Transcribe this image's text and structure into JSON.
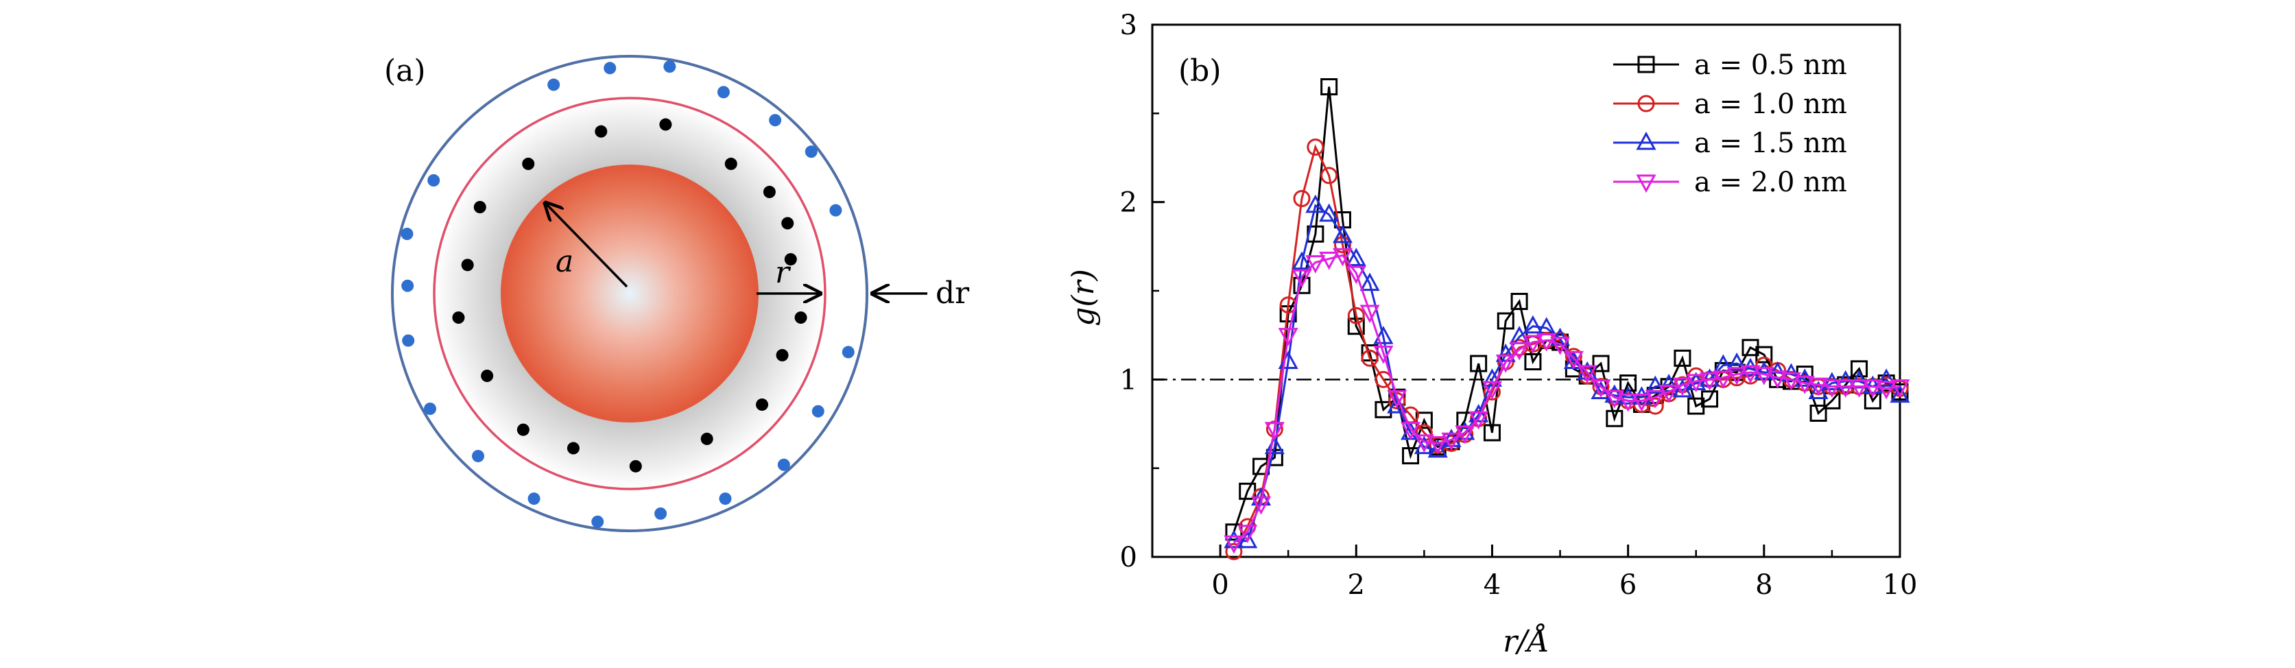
{
  "panel_a": {
    "label": "(a)",
    "radius_label": "a",
    "shell_label": "r",
    "thickness_label": "dr"
  },
  "chart_data": {
    "type": "line",
    "panel_label": "(b)",
    "title": "",
    "xlabel": "r/Å",
    "ylabel": "g(r)",
    "xlim": [
      -1,
      10
    ],
    "ylim": [
      0,
      3
    ],
    "xticks": [
      "0",
      "2",
      "4",
      "6",
      "8",
      "10"
    ],
    "yticks": [
      "0",
      "1",
      "2",
      "3"
    ],
    "reference_line": {
      "y": 1,
      "style": "dash-dot"
    },
    "legend_position": "top-right",
    "series": [
      {
        "name": "a = 0.5 nm",
        "color": "#000000",
        "marker": "square",
        "x": [
          0.2,
          0.4,
          0.6,
          0.8,
          1.0,
          1.2,
          1.4,
          1.6,
          1.8,
          2.0,
          2.2,
          2.4,
          2.6,
          2.8,
          3.0,
          3.2,
          3.4,
          3.6,
          3.8,
          4.0,
          4.2,
          4.4,
          4.6,
          4.8,
          5.0,
          5.2,
          5.4,
          5.6,
          5.8,
          6.0,
          6.2,
          6.4,
          6.6,
          6.8,
          7.0,
          7.2,
          7.4,
          7.6,
          7.8,
          8.0,
          8.2,
          8.4,
          8.6,
          8.8,
          9.0,
          9.2,
          9.4,
          9.6,
          9.8,
          10.0
        ],
        "y": [
          0.14,
          0.37,
          0.51,
          0.56,
          1.37,
          1.53,
          1.82,
          2.65,
          1.9,
          1.3,
          1.15,
          0.83,
          0.9,
          0.57,
          0.77,
          0.62,
          0.65,
          0.77,
          1.09,
          0.7,
          1.33,
          1.44,
          1.1,
          1.22,
          1.21,
          1.06,
          1.02,
          1.09,
          0.78,
          0.98,
          0.86,
          0.91,
          0.96,
          1.12,
          0.85,
          0.89,
          1.05,
          1.04,
          1.18,
          1.14,
          1.0,
          0.99,
          1.03,
          0.81,
          0.88,
          0.97,
          1.06,
          0.88,
          0.98,
          0.93
        ]
      },
      {
        "name": "a = 1.0 nm",
        "color": "#d42020",
        "marker": "circle",
        "x": [
          0.2,
          0.4,
          0.6,
          0.8,
          1.0,
          1.2,
          1.4,
          1.6,
          1.8,
          2.0,
          2.2,
          2.4,
          2.6,
          2.8,
          3.0,
          3.2,
          3.4,
          3.6,
          3.8,
          4.0,
          4.2,
          4.4,
          4.6,
          4.8,
          5.0,
          5.2,
          5.4,
          5.6,
          5.8,
          6.0,
          6.2,
          6.4,
          6.6,
          6.8,
          7.0,
          7.2,
          7.4,
          7.6,
          7.8,
          8.0,
          8.2,
          8.4,
          8.6,
          8.8,
          9.0,
          9.2,
          9.4,
          9.6,
          9.8,
          10.0
        ],
        "y": [
          0.03,
          0.17,
          0.34,
          0.72,
          1.42,
          2.02,
          2.31,
          2.15,
          1.76,
          1.36,
          1.12,
          1.0,
          0.88,
          0.8,
          0.7,
          0.63,
          0.64,
          0.69,
          0.78,
          0.93,
          1.1,
          1.18,
          1.2,
          1.22,
          1.22,
          1.13,
          1.02,
          0.96,
          0.9,
          0.88,
          0.86,
          0.85,
          0.92,
          0.97,
          1.02,
          1.0,
          1.0,
          1.01,
          1.02,
          1.08,
          1.05,
          1.0,
          0.98,
          0.96,
          0.96,
          0.96,
          0.96,
          0.96,
          0.97,
          0.95
        ]
      },
      {
        "name": "a = 1.5 nm",
        "color": "#1f2fd6",
        "marker": "triangle-up",
        "x": [
          0.2,
          0.4,
          0.6,
          0.8,
          1.0,
          1.2,
          1.4,
          1.6,
          1.8,
          2.0,
          2.2,
          2.4,
          2.6,
          2.8,
          3.0,
          3.2,
          3.4,
          3.6,
          3.8,
          4.0,
          4.2,
          4.4,
          4.6,
          4.8,
          5.0,
          5.2,
          5.4,
          5.6,
          5.8,
          6.0,
          6.2,
          6.4,
          6.6,
          6.8,
          7.0,
          7.2,
          7.4,
          7.6,
          7.8,
          8.0,
          8.2,
          8.4,
          8.6,
          8.8,
          9.0,
          9.2,
          9.4,
          9.6,
          9.8,
          10.0
        ],
        "y": [
          0.09,
          0.09,
          0.33,
          0.62,
          1.1,
          1.66,
          1.98,
          1.93,
          1.81,
          1.68,
          1.54,
          1.24,
          0.85,
          0.7,
          0.62,
          0.6,
          0.66,
          0.7,
          0.8,
          1.0,
          1.14,
          1.24,
          1.3,
          1.29,
          1.23,
          1.1,
          1.04,
          0.93,
          0.91,
          0.9,
          0.9,
          0.96,
          0.97,
          0.94,
          0.98,
          1.0,
          1.08,
          1.09,
          1.06,
          1.04,
          1.04,
          1.03,
          1.0,
          0.93,
          0.98,
          0.99,
          0.99,
          0.96,
          1.0,
          0.91
        ]
      },
      {
        "name": "a = 2.0 nm",
        "color": "#e020e0",
        "marker": "triangle-down",
        "x": [
          0.2,
          0.4,
          0.6,
          0.8,
          1.0,
          1.2,
          1.4,
          1.6,
          1.8,
          2.0,
          2.2,
          2.4,
          2.6,
          2.8,
          3.0,
          3.2,
          3.4,
          3.6,
          3.8,
          4.0,
          4.2,
          4.4,
          4.6,
          4.8,
          5.0,
          5.2,
          5.4,
          5.6,
          5.8,
          6.0,
          6.2,
          6.4,
          6.6,
          6.8,
          7.0,
          7.2,
          7.4,
          7.6,
          7.8,
          8.0,
          8.2,
          8.4,
          8.6,
          8.8,
          9.0,
          9.2,
          9.4,
          9.6,
          9.8,
          10.0
        ],
        "y": [
          0.08,
          0.14,
          0.3,
          0.72,
          1.25,
          1.58,
          1.66,
          1.68,
          1.7,
          1.6,
          1.38,
          1.15,
          0.9,
          0.72,
          0.65,
          0.64,
          0.66,
          0.7,
          0.78,
          0.95,
          1.1,
          1.17,
          1.21,
          1.22,
          1.2,
          1.12,
          1.04,
          0.96,
          0.9,
          0.88,
          0.88,
          0.9,
          0.93,
          0.97,
          0.99,
          1.0,
          1.01,
          1.03,
          1.04,
          1.03,
          1.01,
          1.0,
          0.98,
          0.97,
          0.96,
          0.96,
          0.96,
          0.96,
          0.95,
          0.96
        ]
      }
    ]
  }
}
